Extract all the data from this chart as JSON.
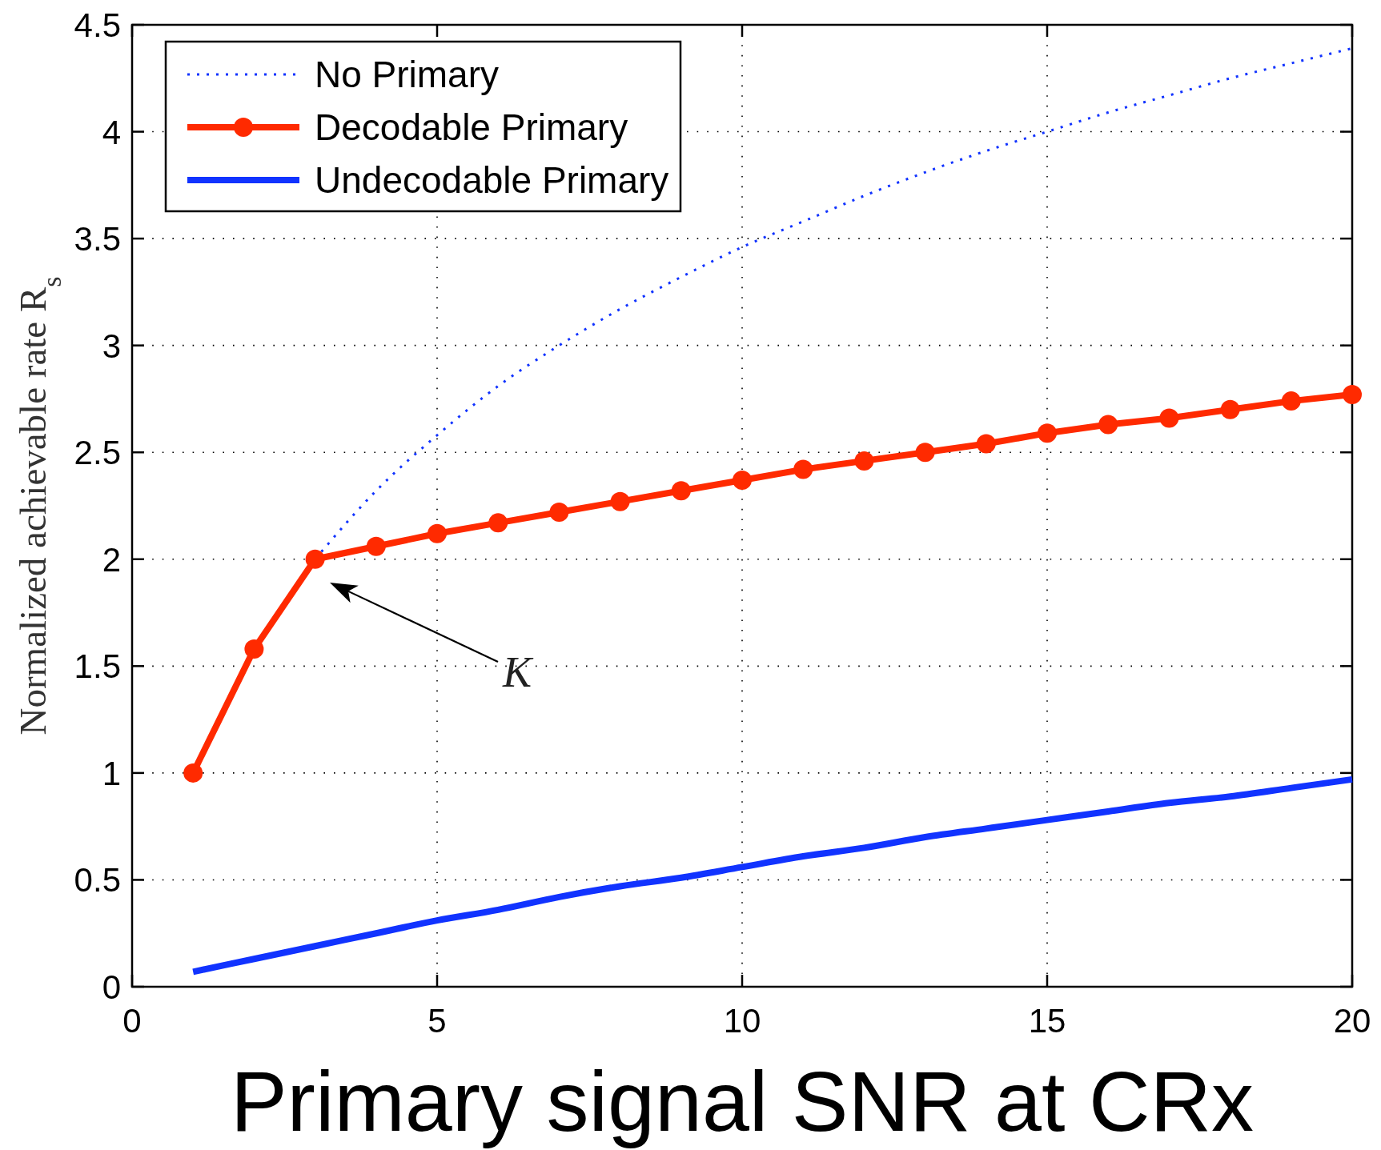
{
  "chart_data": {
    "type": "line",
    "xlabel": "Primary signal SNR at CRx",
    "ylabel": "Normalized achievable rate R$_{s}$",
    "xlim": [
      0,
      20
    ],
    "xticks": [
      0,
      5,
      10,
      15,
      20
    ],
    "ylim": [
      0,
      4.5
    ],
    "yticks": [
      0,
      0.5,
      1,
      1.5,
      2,
      2.5,
      3,
      3.5,
      4,
      4.5
    ],
    "grid": true,
    "legend": "top left",
    "series": [
      {
        "name": "No Primary",
        "color": "#1133ff",
        "line_style": "dotted",
        "marker": "none",
        "x": [
          3,
          4,
          5,
          6,
          7,
          8,
          9,
          10,
          11,
          12,
          13,
          14,
          15,
          16,
          17,
          18,
          19,
          20
        ],
        "values": [
          2.0,
          2.32,
          2.58,
          2.81,
          3.0,
          3.17,
          3.32,
          3.46,
          3.58,
          3.7,
          3.81,
          3.91,
          4.0,
          4.09,
          4.17,
          4.25,
          4.32,
          4.39
        ]
      },
      {
        "name": "Decodable Primary",
        "color": "#ff2a00",
        "line_style": "solid",
        "marker": "circle",
        "x": [
          1,
          2,
          3,
          4,
          5,
          6,
          7,
          8,
          9,
          10,
          11,
          12,
          13,
          14,
          15,
          16,
          17,
          18,
          19,
          20
        ],
        "values": [
          1.0,
          1.58,
          2.0,
          2.06,
          2.12,
          2.17,
          2.22,
          2.27,
          2.32,
          2.37,
          2.42,
          2.46,
          2.5,
          2.54,
          2.59,
          2.63,
          2.66,
          2.7,
          2.74,
          2.77
        ]
      },
      {
        "name": "Undecodable Primary",
        "color": "#1133ff",
        "line_style": "solid",
        "marker": "none",
        "x": [
          1,
          2,
          3,
          4,
          5,
          6,
          7,
          8,
          9,
          10,
          11,
          12,
          13,
          14,
          15,
          16,
          17,
          18,
          19,
          20
        ],
        "values": [
          0.07,
          0.13,
          0.19,
          0.25,
          0.31,
          0.36,
          0.42,
          0.47,
          0.51,
          0.56,
          0.61,
          0.65,
          0.7,
          0.74,
          0.78,
          0.82,
          0.86,
          0.89,
          0.93,
          0.97
        ]
      }
    ],
    "annotations": [
      "K"
    ]
  }
}
